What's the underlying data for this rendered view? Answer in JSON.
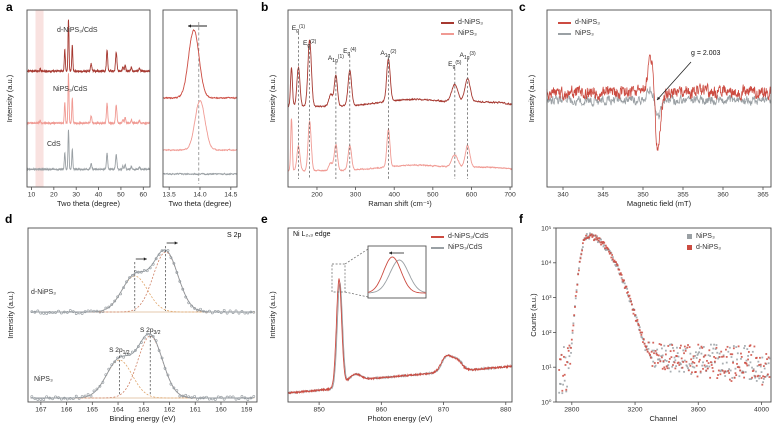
{
  "colors": {
    "dark_red": "#a63830",
    "red": "#cc4b41",
    "pink": "#f09a93",
    "band_pink": "#f9e2e0",
    "gray": "#9aa0a4",
    "fit_orange": "#e0a66c",
    "fit_red": "#cf8368",
    "axis": "#4d4d4d"
  },
  "chart_data": {
    "a": {
      "label": "a",
      "type": "line",
      "ylabel": "Intensity (a.u.)",
      "main": {
        "xlabel": "Two theta (degree)",
        "xmin": 8,
        "xmax": 63,
        "ticks": [
          10,
          20,
          30,
          40,
          50,
          60
        ],
        "band": [
          11.8,
          15.4
        ],
        "curves": [
          {
            "label": "d-NiPS₃/CdS"
          },
          {
            "label": "NiPS₃/CdS"
          },
          {
            "label": "CdS"
          }
        ],
        "peaks": [
          [
            24.9,
            0.22,
            0.42
          ],
          [
            26.55,
            0.22,
            1.0
          ],
          [
            28.25,
            0.22,
            0.5
          ],
          [
            36.7,
            0.28,
            0.14
          ],
          [
            43.8,
            0.28,
            0.4
          ],
          [
            47.9,
            0.3,
            0.36
          ],
          [
            50.9,
            0.25,
            0.08
          ],
          [
            51.9,
            0.25,
            0.12
          ],
          [
            54.7,
            0.25,
            0.07
          ],
          [
            58.3,
            0.3,
            0.05
          ]
        ]
      },
      "zoom": {
        "xlabel": "Two theta (degree)",
        "xmin": 13.4,
        "xmax": 14.6,
        "ticks": [
          "13.5",
          "14.0",
          "14.5"
        ],
        "dashed_line_x": 13.98,
        "curves": [
          {
            "peak": 13.9
          },
          {
            "peak": 14.0
          },
          {
            "peak": null
          }
        ]
      }
    },
    "b": {
      "label": "b",
      "type": "line",
      "xlabel": "Raman shift (cm⁻¹)",
      "ylabel": "Intensity (a.u.)",
      "xmin": 125,
      "xmax": 705,
      "ticks": [
        200,
        300,
        400,
        500,
        600,
        700
      ],
      "legend": [
        {
          "label": "d-NiPS₃"
        },
        {
          "label": "NiPS₃"
        }
      ],
      "peak_labels": [
        {
          "base": "E",
          "sub": "g",
          "sup": "(1)",
          "x": 152,
          "y": 30
        },
        {
          "base": "E",
          "sub": "g",
          "sup": "(2)",
          "x": 181,
          "y": 45
        },
        {
          "base": "A",
          "sub": "1g",
          "sup": "(1)",
          "x": 249,
          "y": 60
        },
        {
          "base": "E",
          "sub": "g",
          "sup": "(4)",
          "x": 285,
          "y": 53
        },
        {
          "base": "A",
          "sub": "1g",
          "sup": "(2)",
          "x": 385,
          "y": 55
        },
        {
          "base": "E",
          "sub": "g",
          "sup": "(5)",
          "x": 557,
          "y": 66
        },
        {
          "base": "A",
          "sub": "1g",
          "sup": "(3)",
          "x": 590,
          "y": 57
        }
      ],
      "curves": [
        {
          "name": "d-NiPS₃",
          "peaks": [
            [
              134,
              2.5,
              0.5
            ],
            [
              152,
              4,
              0.5
            ],
            [
              181,
              4.5,
              0.85
            ],
            [
              236,
              5,
              0.15
            ],
            [
              249,
              4,
              0.4
            ],
            [
              285,
              4.5,
              0.45
            ],
            [
              385,
              4.5,
              0.55
            ],
            [
              557,
              8,
              0.22
            ],
            [
              590,
              7,
              0.3
            ]
          ]
        },
        {
          "name": "NiPS₃",
          "peaks": [
            [
              134,
              2,
              0.85
            ],
            [
              152,
              4,
              0.4
            ],
            [
              181,
              4,
              0.8
            ],
            [
              236,
              5,
              0.12
            ],
            [
              249,
              4,
              0.42
            ],
            [
              285,
              4.5,
              0.4
            ],
            [
              385,
              4,
              0.6
            ],
            [
              557,
              8,
              0.2
            ],
            [
              590,
              6,
              0.35
            ]
          ]
        }
      ]
    },
    "c": {
      "label": "c",
      "type": "line",
      "xlabel": "Magnetic field (mT)",
      "ylabel": "Intensity (a.u.)",
      "xmin": 338,
      "xmax": 366,
      "ticks": [
        340,
        345,
        350,
        355,
        360,
        365
      ],
      "legend": [
        {
          "label": "d-NiPS₃"
        },
        {
          "label": "NiPS₃"
        }
      ],
      "annotation": {
        "text": "g = 2.003",
        "signal_x": 351.4
      }
    },
    "d": {
      "label": "d",
      "type": "scatter+fit",
      "xlabel": "Binding energy (eV)",
      "ylabel": "Intensity (a.u.)",
      "corner_label": "S 2p",
      "xmin": 167.5,
      "xmax": 158.6,
      "ticks": [
        167,
        166,
        165,
        164,
        163,
        162,
        161,
        160,
        159
      ],
      "datasets": [
        {
          "name": "d-NiPS₃",
          "p12": 163.35,
          "p32": 162.15
        },
        {
          "name": "NiPS₃",
          "p12": 163.95,
          "p32": 162.75
        }
      ],
      "component_labels": [
        {
          "base": "S 2p",
          "sub": "1/2"
        },
        {
          "base": "S 2p",
          "sub": "3/2"
        }
      ]
    },
    "e": {
      "label": "e",
      "type": "line",
      "corner_label": "Ni L₂,₃ edge",
      "xlabel": "Photon energy (eV)",
      "ylabel": "Intensity (a.u.)",
      "xmin": 845,
      "xmax": 881,
      "ticks": [
        850,
        860,
        870,
        880
      ],
      "legend": [
        {
          "label": "d-NiPS₃/CdS"
        },
        {
          "label": "NiPS₃/CdS"
        }
      ],
      "l3_peak": 853.2,
      "l2_peaks": [
        870.4,
        872.1
      ]
    },
    "f": {
      "label": "f",
      "type": "scatter",
      "xlabel": "Channel",
      "ylabel": "Counts (a.u.)",
      "xmin": 2700,
      "xmax": 4060,
      "xticks": [
        2800,
        3200,
        3600,
        4000
      ],
      "ytick_labels": [
        "10⁰",
        "10¹",
        "10²",
        "10³",
        "10⁴",
        "10⁵"
      ],
      "legend": [
        {
          "label": "NiPS₃"
        },
        {
          "label": "d-NiPS₃"
        }
      ],
      "peak_channel": 2900,
      "peak_counts": 60000
    }
  }
}
